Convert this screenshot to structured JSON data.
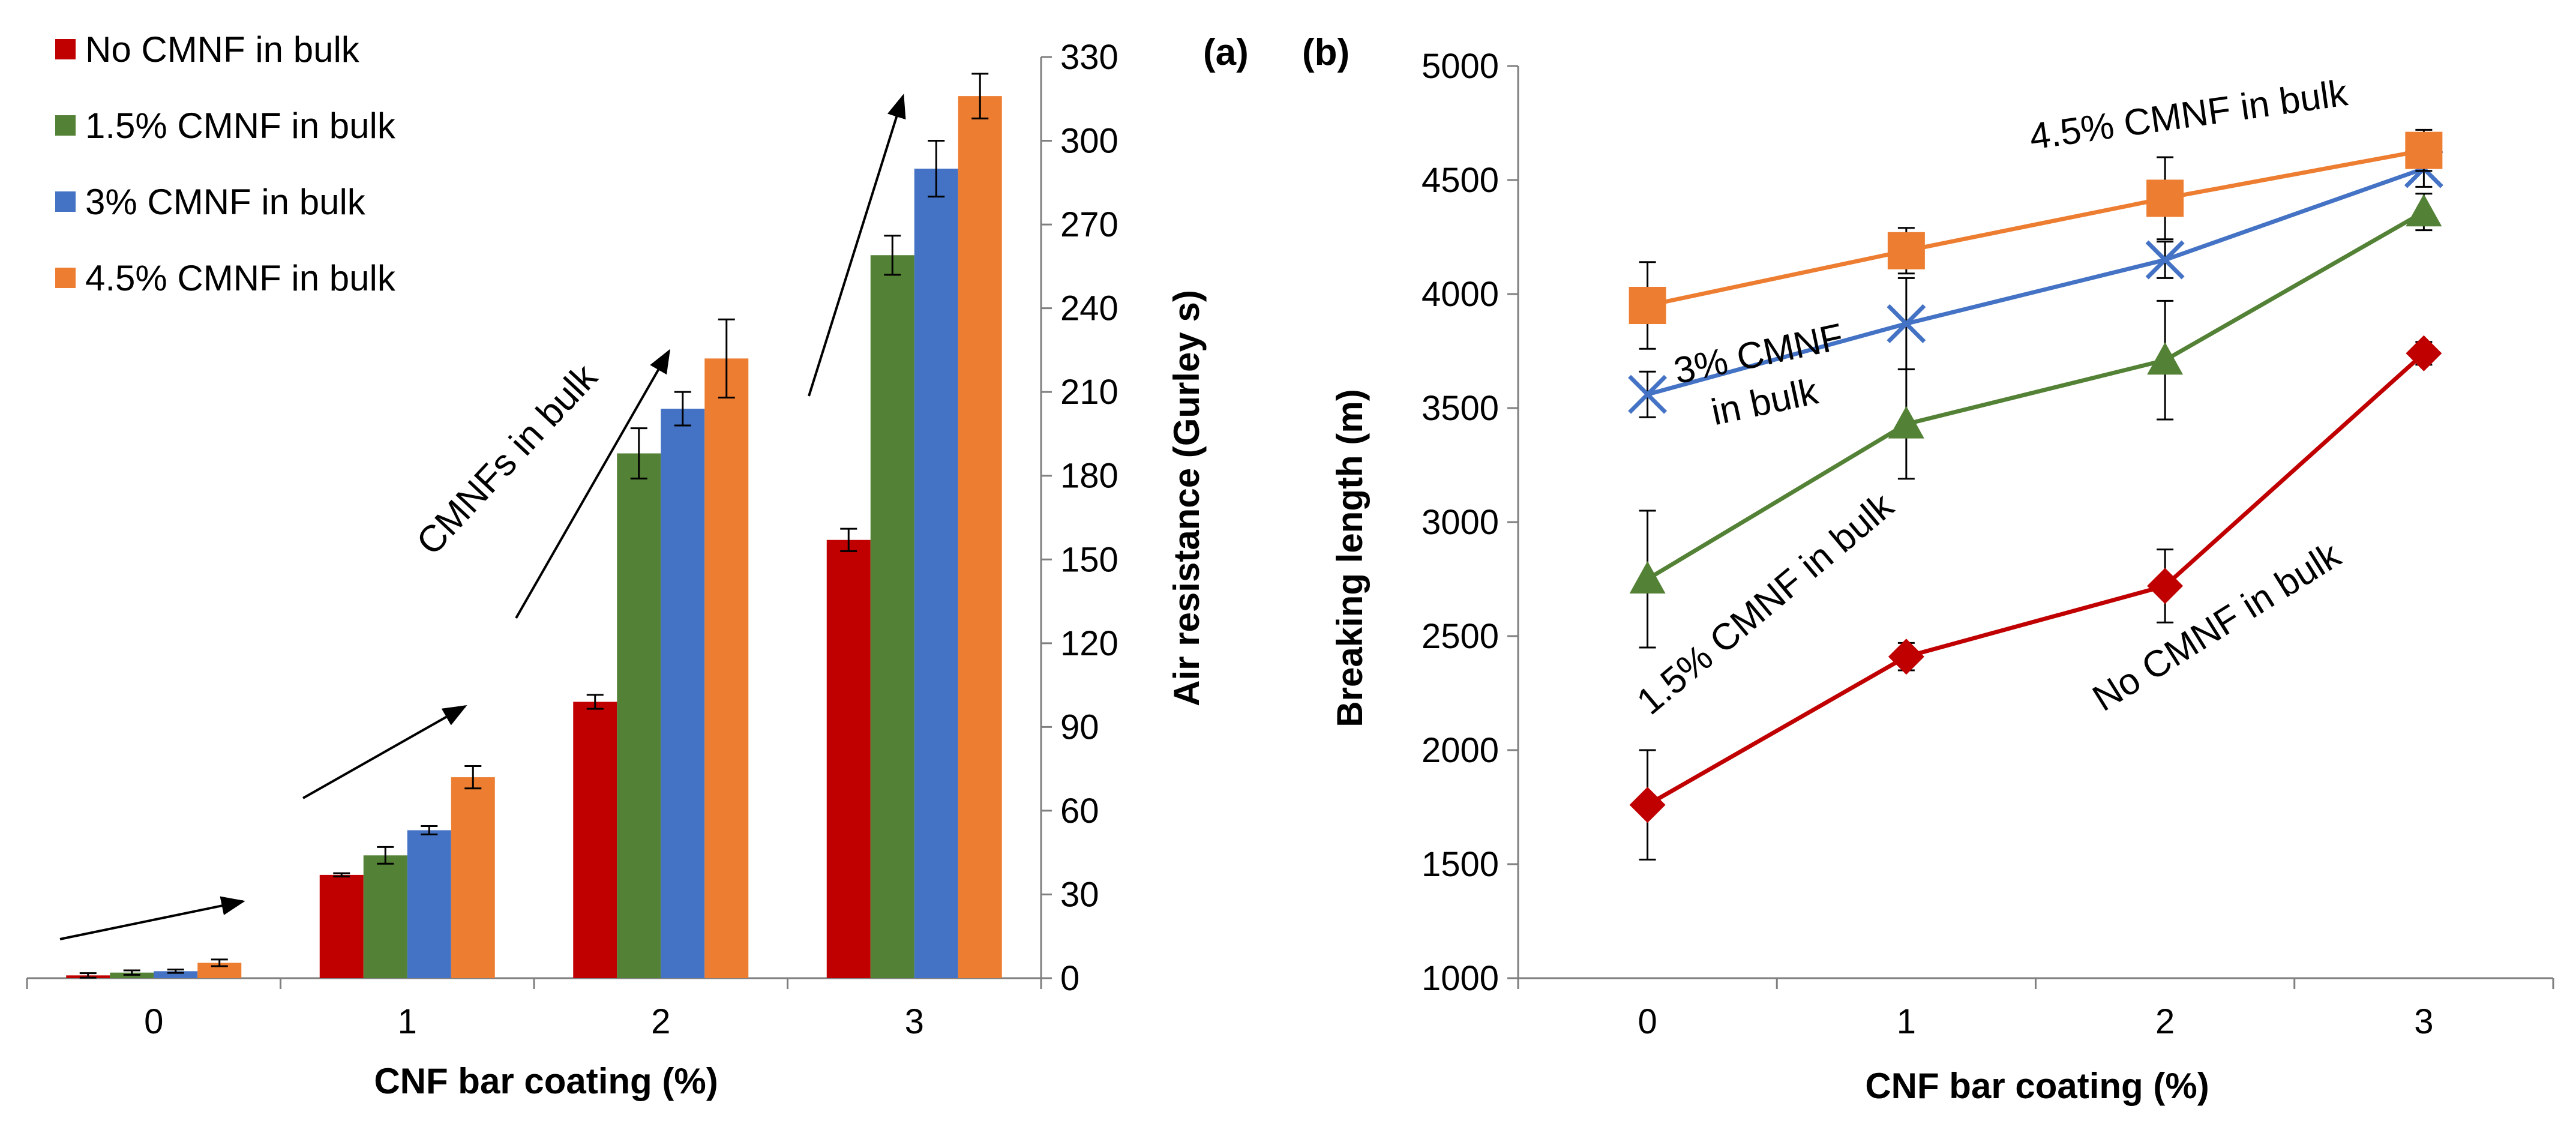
{
  "chart_data": [
    {
      "type": "bar",
      "panel_label": "(a)",
      "categories": [
        "0",
        "1",
        "2",
        "3"
      ],
      "xlabel": "CNF bar coating (%)",
      "ylabel": "Air resistance (Gurley s)",
      "ylim": [
        0,
        330
      ],
      "yticks": [
        "0",
        "30",
        "60",
        "90",
        "120",
        "150",
        "180",
        "210",
        "240",
        "270",
        "300",
        "330"
      ],
      "grid": false,
      "legend_position": "top-left",
      "series": [
        {
          "name": "No CMNF in bulk",
          "color": "#C00000",
          "values": [
            1,
            37,
            99,
            157
          ],
          "errors": [
            0.8,
            0.6,
            2.5,
            4
          ]
        },
        {
          "name": "1.5% CMNF in bulk",
          "color": "#538135",
          "values": [
            2,
            44,
            188,
            259
          ],
          "errors": [
            0.8,
            3,
            9,
            7
          ]
        },
        {
          "name": "3% CMNF in bulk",
          "color": "#4472C4",
          "values": [
            2.5,
            53,
            204,
            290
          ],
          "errors": [
            0.6,
            1.5,
            6,
            10
          ]
        },
        {
          "name": "4.5% CMNF in bulk",
          "color": "#ED7D31",
          "values": [
            5.5,
            72,
            222,
            316
          ],
          "errors": [
            1.2,
            4,
            14,
            8
          ]
        }
      ],
      "annotations": [
        {
          "text": "CMNFs in bulk"
        }
      ]
    },
    {
      "type": "line",
      "panel_label": "(b)",
      "x": [
        "0",
        "1",
        "2",
        "3"
      ],
      "xlabel": "CNF bar coating (%)",
      "ylabel": "Breaking length (m)",
      "ylim": [
        1000,
        5000
      ],
      "yticks": [
        "1000",
        "1500",
        "2000",
        "2500",
        "3000",
        "3500",
        "4000",
        "4500",
        "5000"
      ],
      "grid": false,
      "series": [
        {
          "name": "No CMNF in bulk",
          "color": "#C00000",
          "marker": "diamond",
          "values": [
            1760,
            2410,
            2720,
            3740
          ],
          "errors": [
            240,
            60,
            160,
            50
          ]
        },
        {
          "name": "1.5% CMNF in bulk",
          "color": "#538135",
          "marker": "triangle",
          "values": [
            2750,
            3430,
            3710,
            4360
          ],
          "errors": [
            300,
            240,
            260,
            80
          ]
        },
        {
          "name": "3% CMNF in bulk",
          "color": "#4472C4",
          "marker": "x",
          "values": [
            3560,
            3870,
            4150,
            4550
          ],
          "errors": [
            100,
            200,
            80,
            80
          ]
        },
        {
          "name": "4.5% CMNF in bulk",
          "color": "#ED7D31",
          "marker": "square",
          "values": [
            3950,
            4190,
            4420,
            4630
          ],
          "errors": [
            190,
            100,
            180,
            90
          ]
        }
      ],
      "annotations": [
        {
          "text": "4.5% CMNF in bulk"
        },
        {
          "text": "3% CMNF"
        },
        {
          "text": "in bulk"
        },
        {
          "text": "1.5% CMNF in bulk"
        },
        {
          "text": "No CMNF in bulk"
        }
      ]
    }
  ]
}
